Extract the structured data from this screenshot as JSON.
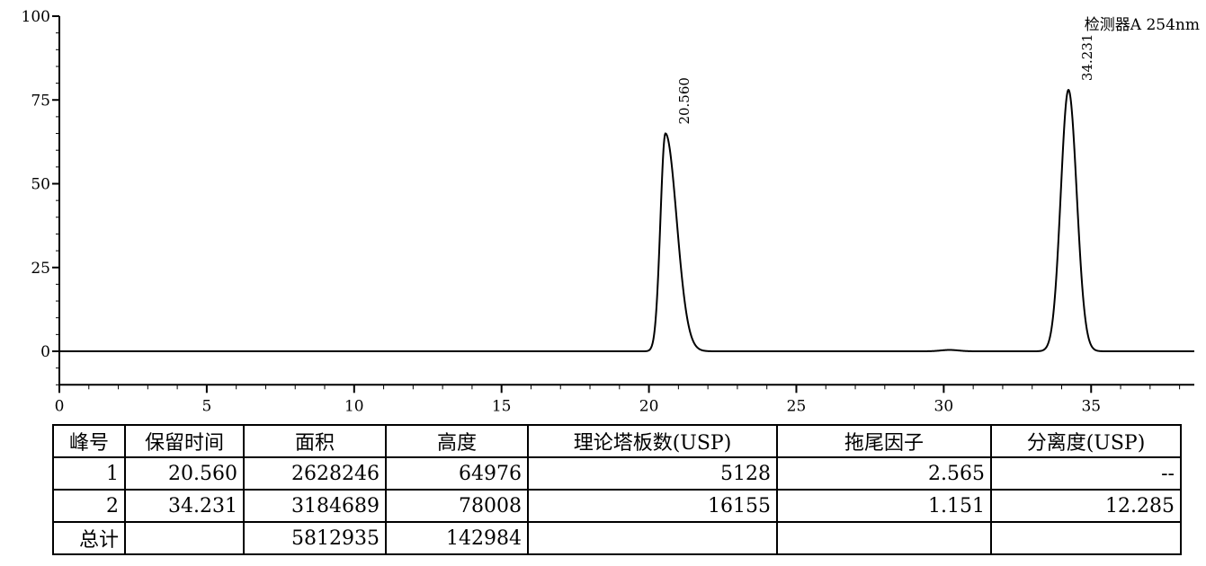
{
  "chart_data": {
    "type": "line",
    "detector_label": "检测器A 254nm",
    "xlim": [
      0,
      38.5
    ],
    "ylim": [
      -10,
      100
    ],
    "x_ticks": [
      0,
      5,
      10,
      15,
      20,
      25,
      30,
      35
    ],
    "y_ticks": [
      0,
      25,
      50,
      75,
      100
    ],
    "series": [
      {
        "peaks": [
          {
            "retention_time": 20.56,
            "height": 65,
            "sigma_left": 0.17,
            "sigma_right": 0.38,
            "label": "20.560"
          },
          {
            "retention_time": 34.231,
            "height": 78,
            "sigma_left": 0.26,
            "sigma_right": 0.28,
            "label": "34.231"
          },
          {
            "retention_time": 30.2,
            "height": 0.4,
            "sigma_left": 0.3,
            "sigma_right": 0.3,
            "label": ""
          }
        ]
      }
    ],
    "grid": false
  },
  "table": {
    "headers": [
      "峰号",
      "保留时间",
      "面积",
      "高度",
      "理论塔板数(USP)",
      "拖尾因子",
      "分离度(USP)"
    ],
    "rows": [
      [
        "1",
        "20.560",
        "2628246",
        "64976",
        "5128",
        "2.565",
        "--"
      ],
      [
        "2",
        "34.231",
        "3184689",
        "78008",
        "16155",
        "1.151",
        "12.285"
      ],
      [
        "总计",
        "",
        "5812935",
        "142984",
        "",
        "",
        ""
      ]
    ]
  }
}
